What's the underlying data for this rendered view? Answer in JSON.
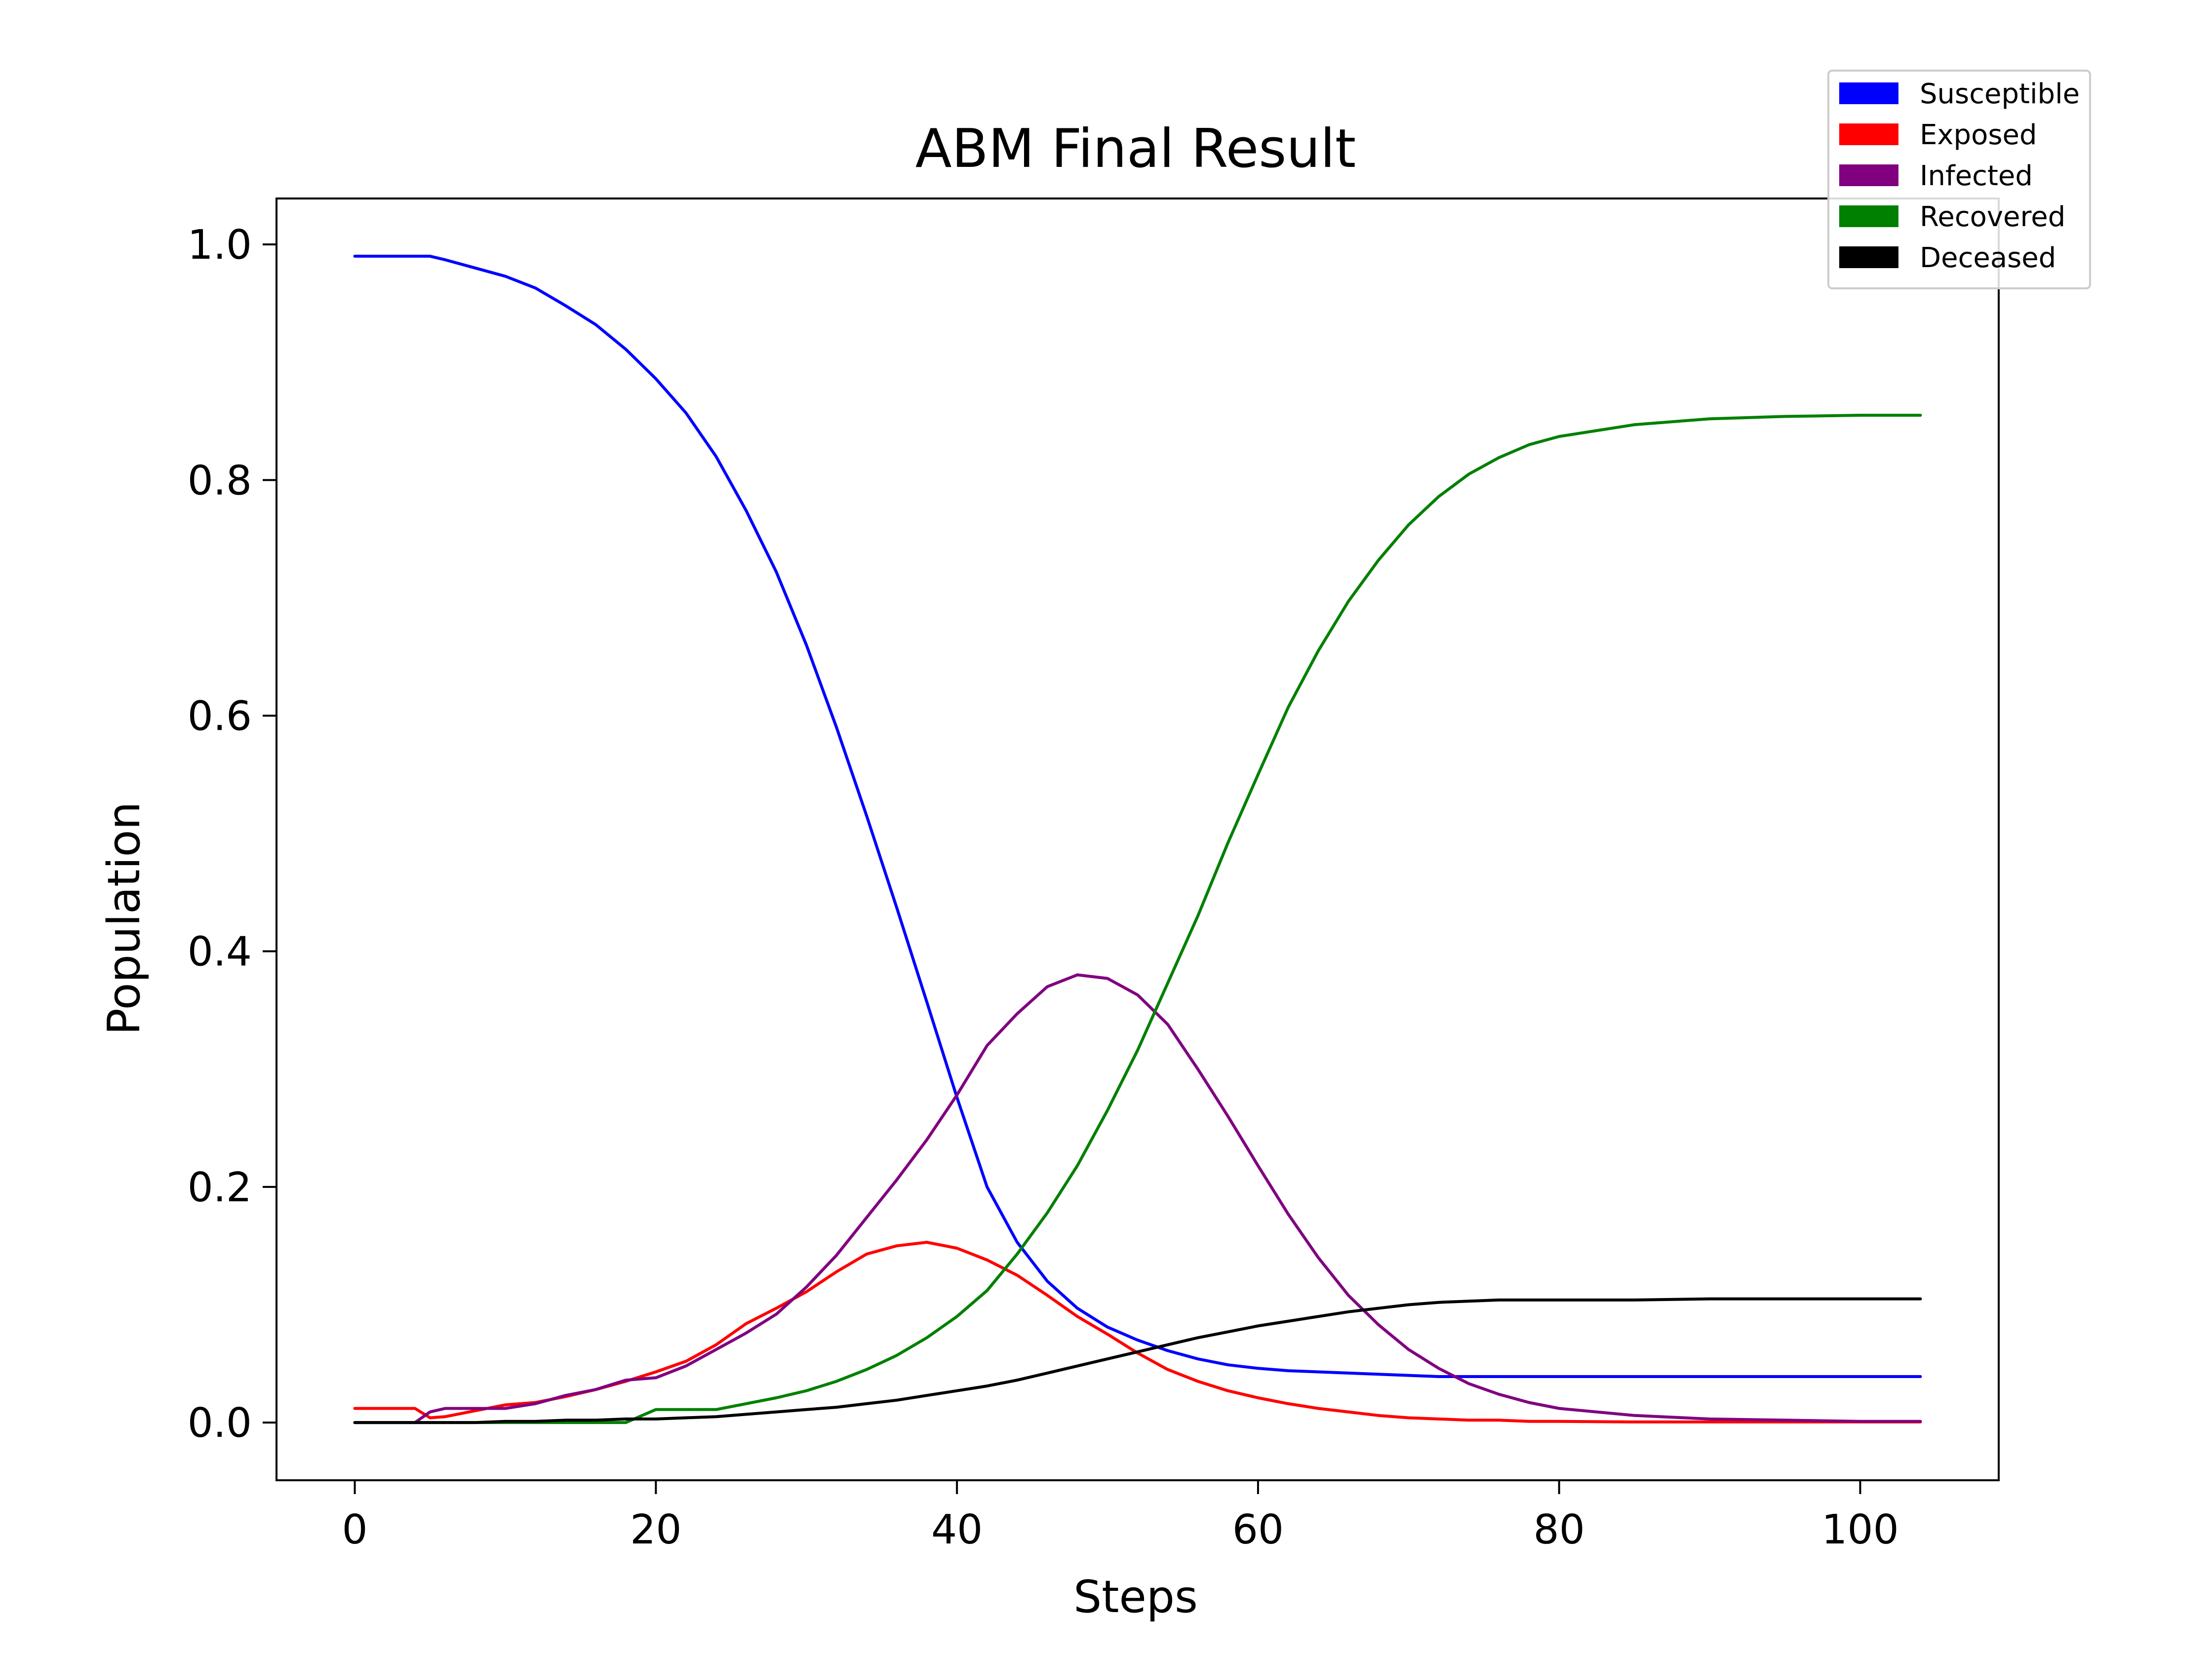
{
  "chart_data": {
    "type": "line",
    "title": "ABM Final Result",
    "xlabel": "Steps",
    "ylabel": "Population",
    "xlim": [
      -5.2,
      109.2
    ],
    "ylim": [
      -0.049,
      1.039
    ],
    "xticks": [
      0,
      20,
      40,
      60,
      80,
      100
    ],
    "yticks": [
      0.0,
      0.2,
      0.4,
      0.6,
      0.8,
      1.0
    ],
    "xtick_labels": [
      "0",
      "20",
      "40",
      "60",
      "80",
      "100"
    ],
    "ytick_labels": [
      "0.0",
      "0.2",
      "0.4",
      "0.6",
      "0.8",
      "1.0"
    ],
    "grid": false,
    "legend_position": "top-right",
    "series": [
      {
        "name": "Susceptible",
        "color": "#0000ff",
        "x": [
          0,
          2,
          4,
          5,
          6,
          8,
          10,
          12,
          14,
          16,
          18,
          20,
          22,
          24,
          26,
          28,
          30,
          32,
          34,
          36,
          38,
          40,
          42,
          44,
          46,
          48,
          50,
          52,
          54,
          56,
          58,
          60,
          62,
          64,
          66,
          68,
          70,
          72,
          74,
          76,
          78,
          80,
          85,
          90,
          95,
          100,
          104
        ],
        "y": [
          0.99,
          0.99,
          0.99,
          0.99,
          0.987,
          0.98,
          0.973,
          0.963,
          0.948,
          0.932,
          0.911,
          0.886,
          0.857,
          0.82,
          0.774,
          0.722,
          0.66,
          0.59,
          0.515,
          0.437,
          0.357,
          0.276,
          0.2,
          0.153,
          0.12,
          0.097,
          0.081,
          0.07,
          0.061,
          0.054,
          0.049,
          0.046,
          0.044,
          0.043,
          0.042,
          0.041,
          0.04,
          0.039,
          0.039,
          0.039,
          0.039,
          0.039,
          0.039,
          0.039,
          0.039,
          0.039,
          0.039
        ]
      },
      {
        "name": "Exposed",
        "color": "#ff0000",
        "x": [
          0,
          2,
          4,
          5,
          6,
          8,
          10,
          12,
          14,
          16,
          18,
          20,
          22,
          24,
          26,
          28,
          30,
          32,
          34,
          36,
          38,
          40,
          42,
          44,
          46,
          48,
          50,
          52,
          54,
          56,
          58,
          60,
          62,
          64,
          66,
          68,
          70,
          72,
          74,
          76,
          78,
          80,
          85,
          90,
          95,
          100,
          104
        ],
        "y": [
          0.012,
          0.012,
          0.012,
          0.004,
          0.005,
          0.01,
          0.015,
          0.017,
          0.022,
          0.028,
          0.035,
          0.043,
          0.052,
          0.066,
          0.084,
          0.097,
          0.111,
          0.128,
          0.143,
          0.15,
          0.153,
          0.148,
          0.138,
          0.125,
          0.108,
          0.09,
          0.075,
          0.059,
          0.045,
          0.035,
          0.027,
          0.021,
          0.016,
          0.012,
          0.009,
          0.006,
          0.004,
          0.003,
          0.002,
          0.002,
          0.001,
          0.001,
          0.0005,
          0.0005,
          0.0005,
          0.0005,
          0.0005
        ]
      },
      {
        "name": "Infected",
        "color": "#800080",
        "x": [
          0,
          2,
          4,
          5,
          6,
          8,
          10,
          12,
          14,
          16,
          18,
          20,
          22,
          24,
          26,
          28,
          30,
          32,
          34,
          36,
          38,
          40,
          42,
          44,
          46,
          48,
          50,
          52,
          54,
          56,
          58,
          60,
          62,
          64,
          66,
          68,
          70,
          72,
          74,
          76,
          78,
          80,
          85,
          90,
          95,
          100,
          104
        ],
        "y": [
          0.0,
          0.0,
          0.0,
          0.009,
          0.012,
          0.012,
          0.012,
          0.016,
          0.023,
          0.028,
          0.036,
          0.038,
          0.048,
          0.062,
          0.076,
          0.092,
          0.115,
          0.142,
          0.174,
          0.206,
          0.24,
          0.278,
          0.32,
          0.347,
          0.37,
          0.38,
          0.377,
          0.363,
          0.338,
          0.3,
          0.26,
          0.218,
          0.177,
          0.14,
          0.108,
          0.083,
          0.062,
          0.046,
          0.033,
          0.024,
          0.017,
          0.012,
          0.006,
          0.003,
          0.002,
          0.001,
          0.001
        ]
      },
      {
        "name": "Recovered",
        "color": "#008000",
        "x": [
          0,
          2,
          4,
          6,
          8,
          10,
          12,
          14,
          16,
          18,
          20,
          22,
          24,
          26,
          28,
          30,
          32,
          34,
          36,
          38,
          40,
          42,
          44,
          46,
          48,
          50,
          52,
          54,
          56,
          58,
          60,
          62,
          64,
          66,
          68,
          70,
          72,
          74,
          76,
          78,
          80,
          85,
          90,
          95,
          100,
          104
        ],
        "y": [
          0.0,
          0.0,
          0.0,
          0.0,
          0.0,
          0.0,
          0.0,
          0.0,
          0.0,
          0.0,
          0.011,
          0.011,
          0.011,
          0.016,
          0.021,
          0.027,
          0.035,
          0.045,
          0.057,
          0.072,
          0.09,
          0.112,
          0.143,
          0.178,
          0.218,
          0.265,
          0.316,
          0.373,
          0.43,
          0.492,
          0.55,
          0.607,
          0.655,
          0.697,
          0.732,
          0.762,
          0.786,
          0.805,
          0.819,
          0.83,
          0.837,
          0.847,
          0.852,
          0.854,
          0.855,
          0.855
        ]
      },
      {
        "name": "Deceased",
        "color": "#000000",
        "x": [
          0,
          4,
          6,
          8,
          10,
          12,
          14,
          16,
          18,
          20,
          22,
          24,
          26,
          28,
          30,
          32,
          34,
          36,
          38,
          40,
          42,
          44,
          46,
          48,
          50,
          52,
          54,
          56,
          58,
          60,
          62,
          64,
          66,
          68,
          70,
          72,
          74,
          76,
          78,
          80,
          85,
          90,
          95,
          100,
          104
        ],
        "y": [
          0.0,
          0.0,
          0.0,
          0.0,
          0.001,
          0.001,
          0.002,
          0.002,
          0.003,
          0.003,
          0.004,
          0.005,
          0.007,
          0.009,
          0.011,
          0.013,
          0.016,
          0.019,
          0.023,
          0.027,
          0.031,
          0.036,
          0.042,
          0.048,
          0.054,
          0.06,
          0.066,
          0.072,
          0.077,
          0.082,
          0.086,
          0.09,
          0.094,
          0.097,
          0.1,
          0.102,
          0.103,
          0.104,
          0.104,
          0.104,
          0.104,
          0.105,
          0.105,
          0.105,
          0.105
        ]
      }
    ]
  }
}
